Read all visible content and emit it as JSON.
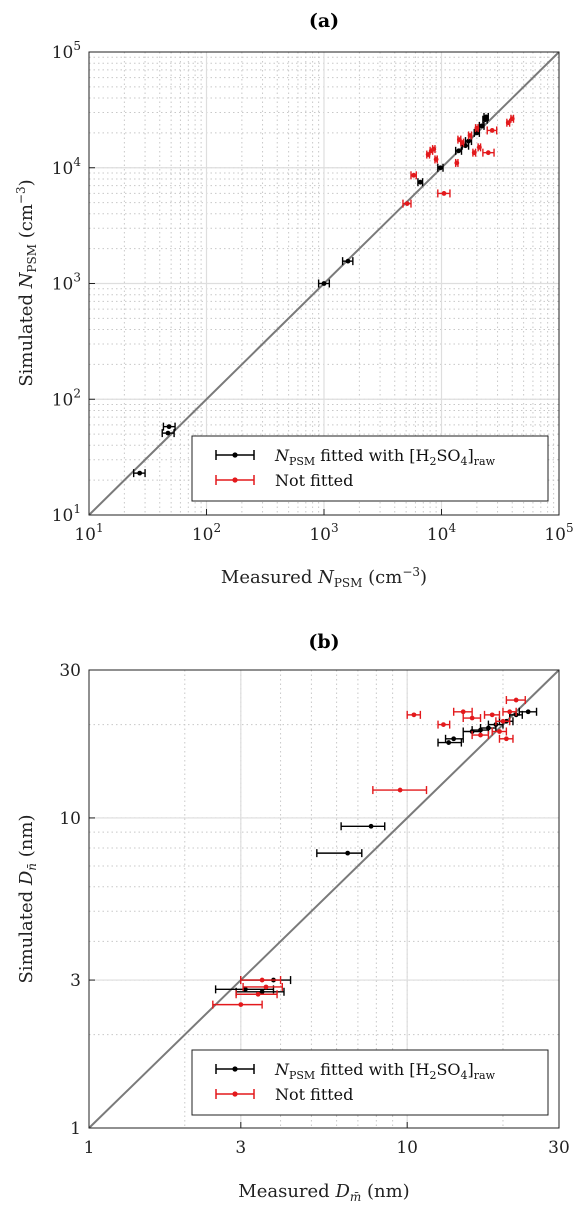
{
  "chart_data": [
    {
      "type": "scatter",
      "title": "(a)",
      "xlabel": "Measured N_PSM (cm^-3)",
      "ylabel": "Simulated N_PSM (cm^-3)",
      "xscale": "log",
      "yscale": "log",
      "xlim": [
        10,
        100000
      ],
      "ylim": [
        10,
        100000
      ],
      "x_ticks": [
        10,
        100,
        1000,
        10000,
        100000
      ],
      "y_ticks": [
        10,
        100,
        1000,
        10000,
        100000
      ],
      "grid": true,
      "identity_line": true,
      "legend_position": "bottom-right",
      "legend": [
        "N_PSM fitted with [H2SO4]raw",
        "Not fitted"
      ],
      "series": [
        {
          "name": "N_PSM fitted with [H2SO4]raw",
          "color": "#000000",
          "points": [
            {
              "x": 27,
              "y": 23,
              "xlo": 24,
              "xhi": 30
            },
            {
              "x": 48,
              "y": 58,
              "xlo": 43,
              "xhi": 54
            },
            {
              "x": 47,
              "y": 51,
              "xlo": 42,
              "xhi": 53
            },
            {
              "x": 1000,
              "y": 1000,
              "xlo": 900,
              "xhi": 1110
            },
            {
              "x": 1600,
              "y": 1560,
              "xlo": 1440,
              "xhi": 1760
            },
            {
              "x": 6600,
              "y": 7500,
              "xlo": 6300,
              "xhi": 6900
            },
            {
              "x": 9800,
              "y": 10000,
              "xlo": 9300,
              "xhi": 10300
            },
            {
              "x": 14000,
              "y": 14000,
              "xlo": 13200,
              "xhi": 14800
            },
            {
              "x": 16000,
              "y": 15500,
              "xlo": 15000,
              "xhi": 17000
            },
            {
              "x": 17000,
              "y": 17000,
              "xlo": 16000,
              "xhi": 18000
            },
            {
              "x": 20000,
              "y": 20000,
              "xlo": 19000,
              "xhi": 21000
            },
            {
              "x": 22000,
              "y": 23000,
              "xlo": 21000,
              "xhi": 23000
            },
            {
              "x": 23500,
              "y": 26000,
              "xlo": 22500,
              "xhi": 24500
            },
            {
              "x": 24000,
              "y": 27500,
              "xlo": 23000,
              "xhi": 25000
            }
          ]
        },
        {
          "name": "Not fitted",
          "color": "#e3191c",
          "points": [
            {
              "x": 5100,
              "y": 4900,
              "xlo": 4700,
              "xhi": 5500
            },
            {
              "x": 5800,
              "y": 8600,
              "xlo": 5500,
              "xhi": 6100
            },
            {
              "x": 7700,
              "y": 13000,
              "xlo": 7500,
              "xhi": 7900
            },
            {
              "x": 8200,
              "y": 14000,
              "xlo": 8000,
              "xhi": 8400
            },
            {
              "x": 8600,
              "y": 14500,
              "xlo": 8400,
              "xhi": 8800
            },
            {
              "x": 9000,
              "y": 11800,
              "xlo": 8800,
              "xhi": 9200
            },
            {
              "x": 10500,
              "y": 6000,
              "xlo": 9300,
              "xhi": 11800
            },
            {
              "x": 13500,
              "y": 11000,
              "xlo": 13200,
              "xhi": 13800
            },
            {
              "x": 14200,
              "y": 17500,
              "xlo": 13800,
              "xhi": 14600
            },
            {
              "x": 15000,
              "y": 16500,
              "xlo": 14600,
              "xhi": 15400
            },
            {
              "x": 17500,
              "y": 19000,
              "xlo": 17000,
              "xhi": 18000
            },
            {
              "x": 19000,
              "y": 13500,
              "xlo": 18500,
              "xhi": 19500
            },
            {
              "x": 20000,
              "y": 22000,
              "xlo": 19500,
              "xhi": 20500
            },
            {
              "x": 21000,
              "y": 15000,
              "xlo": 20500,
              "xhi": 21500
            },
            {
              "x": 25000,
              "y": 13500,
              "xlo": 22500,
              "xhi": 28000
            },
            {
              "x": 27000,
              "y": 21000,
              "xlo": 24500,
              "xhi": 29500
            },
            {
              "x": 37000,
              "y": 24500,
              "xlo": 36000,
              "xhi": 38000
            },
            {
              "x": 40000,
              "y": 26500,
              "xlo": 39000,
              "xhi": 41000
            }
          ]
        }
      ]
    },
    {
      "type": "scatter",
      "title": "(b)",
      "xlabel": "Measured D_m̄ (nm)",
      "ylabel": "Simulated D_n̄ (nm)",
      "xscale": "log",
      "yscale": "log",
      "xlim": [
        1,
        30
      ],
      "ylim": [
        1,
        30
      ],
      "x_ticks": [
        1,
        3,
        10,
        30
      ],
      "y_ticks": [
        1,
        3,
        10,
        30
      ],
      "grid": true,
      "identity_line": true,
      "legend_position": "bottom-right",
      "legend": [
        "N_PSM fitted with [H2SO4]raw",
        "Not fitted"
      ],
      "series": [
        {
          "name": "N_PSM fitted with [H2SO4]raw",
          "color": "#000000",
          "points": [
            {
              "x": 6.5,
              "y": 7.7,
              "xlo": 5.2,
              "xhi": 7.2
            },
            {
              "x": 7.7,
              "y": 9.4,
              "xlo": 6.2,
              "xhi": 8.5
            },
            {
              "x": 3.1,
              "y": 2.8,
              "xlo": 2.5,
              "xhi": 3.8
            },
            {
              "x": 3.5,
              "y": 2.75,
              "xlo": 2.9,
              "xhi": 4.1
            },
            {
              "x": 3.8,
              "y": 3.0,
              "xlo": 3.0,
              "xhi": 4.3
            },
            {
              "x": 13.5,
              "y": 17.5,
              "xlo": 12.5,
              "xhi": 14.8
            },
            {
              "x": 14.0,
              "y": 18.0,
              "xlo": 13.2,
              "xhi": 15.0
            },
            {
              "x": 16.0,
              "y": 19.0,
              "xlo": 15.0,
              "xhi": 17.0
            },
            {
              "x": 17.0,
              "y": 19.2,
              "xlo": 16.0,
              "xhi": 18.0
            },
            {
              "x": 18.0,
              "y": 19.5,
              "xlo": 17.0,
              "xhi": 19.0
            },
            {
              "x": 19.0,
              "y": 20.0,
              "xlo": 18.0,
              "xhi": 20.0
            },
            {
              "x": 20.5,
              "y": 20.5,
              "xlo": 19.5,
              "xhi": 21.5
            },
            {
              "x": 22.0,
              "y": 21.5,
              "xlo": 21.0,
              "xhi": 23.0
            },
            {
              "x": 24.0,
              "y": 22.0,
              "xlo": 22.5,
              "xhi": 25.5
            }
          ]
        },
        {
          "name": "Not fitted",
          "color": "#e3191c",
          "points": [
            {
              "x": 9.5,
              "y": 12.3,
              "xlo": 7.8,
              "xhi": 11.5
            },
            {
              "x": 3.0,
              "y": 2.5,
              "xlo": 2.45,
              "xhi": 3.5
            },
            {
              "x": 3.4,
              "y": 2.7,
              "xlo": 2.9,
              "xhi": 3.9
            },
            {
              "x": 3.6,
              "y": 2.85,
              "xlo": 3.05,
              "xhi": 4.05
            },
            {
              "x": 3.5,
              "y": 3.0,
              "xlo": 3.0,
              "xhi": 4.0
            },
            {
              "x": 10.5,
              "y": 21.5,
              "xlo": 10.0,
              "xhi": 11.0
            },
            {
              "x": 13.0,
              "y": 20.0,
              "xlo": 12.5,
              "xhi": 13.6
            },
            {
              "x": 15.0,
              "y": 22.0,
              "xlo": 14.0,
              "xhi": 16.0
            },
            {
              "x": 16.0,
              "y": 21.0,
              "xlo": 15.0,
              "xhi": 17.0
            },
            {
              "x": 17.0,
              "y": 18.5,
              "xlo": 16.0,
              "xhi": 18.0
            },
            {
              "x": 18.5,
              "y": 21.5,
              "xlo": 17.5,
              "xhi": 19.5
            },
            {
              "x": 19.5,
              "y": 19.0,
              "xlo": 18.5,
              "xhi": 20.5
            },
            {
              "x": 21.0,
              "y": 22.0,
              "xlo": 20.0,
              "xhi": 22.0
            },
            {
              "x": 20.0,
              "y": 20.5,
              "xlo": 19.0,
              "xhi": 21.0
            },
            {
              "x": 22.0,
              "y": 24.0,
              "xlo": 20.5,
              "xhi": 23.5
            },
            {
              "x": 20.5,
              "y": 18.0,
              "xlo": 19.5,
              "xhi": 21.5
            }
          ]
        }
      ]
    }
  ]
}
